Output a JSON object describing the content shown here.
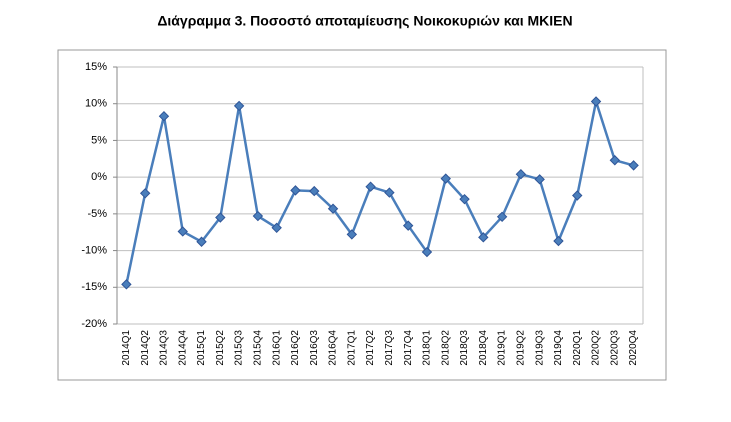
{
  "chart_data": {
    "type": "line",
    "title": "Διάγραμμα 3. Ποσοστό αποταμίευσης Νοικοκυριών και ΜΚΙΕΝ",
    "categories": [
      "2014Q1",
      "2014Q2",
      "2014Q3",
      "2014Q4",
      "2015Q1",
      "2015Q2",
      "2015Q3",
      "2015Q4",
      "2016Q1",
      "2016Q2",
      "2016Q3",
      "2016Q4",
      "2017Q1",
      "2017Q2",
      "2017Q3",
      "2017Q4",
      "2018Q1",
      "2018Q2",
      "2018Q3",
      "2018Q4",
      "2019Q1",
      "2019Q2",
      "2019Q3",
      "2019Q4",
      "2020Q1",
      "2020Q2",
      "2020Q3",
      "2020Q4"
    ],
    "values": [
      -14.6,
      -2.2,
      8.3,
      -7.4,
      -8.8,
      -5.5,
      9.7,
      -5.3,
      -6.9,
      -1.8,
      -1.9,
      -4.3,
      -7.8,
      -1.3,
      -2.1,
      -6.6,
      -10.2,
      -0.2,
      -3.0,
      -8.2,
      -5.4,
      0.4,
      -0.3,
      -8.7,
      -2.5,
      10.3,
      2.3,
      1.6
    ],
    "color": "#4a7ebb",
    "marker_color": "#2f5597",
    "ylim": [
      -20,
      15
    ],
    "yticks": [
      {
        "value": -20,
        "label": "-20%"
      },
      {
        "value": -15,
        "label": "-15%"
      },
      {
        "value": -10,
        "label": "-10%"
      },
      {
        "value": -5,
        "label": "-5%"
      },
      {
        "value": 0,
        "label": "0%"
      },
      {
        "value": 5,
        "label": "5%"
      },
      {
        "value": 10,
        "label": "10%"
      },
      {
        "value": 15,
        "label": "15%"
      }
    ],
    "grid": true
  }
}
